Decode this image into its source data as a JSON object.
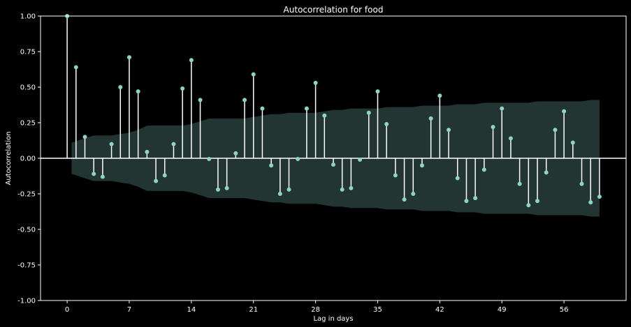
{
  "chart_data": {
    "type": "stem",
    "title": "Autocorrelation for food",
    "xlabel": "Lag in days",
    "ylabel": "Autocorrelation",
    "xlim": [
      -3,
      63
    ],
    "ylim": [
      -1.0,
      1.0
    ],
    "xticks": [
      0,
      7,
      14,
      21,
      28,
      35,
      42,
      49,
      56
    ],
    "yticks": [
      "-1.00",
      "-0.75",
      "-0.50",
      "-0.25",
      "0.00",
      "0.25",
      "0.50",
      "0.75",
      "1.00"
    ],
    "grid": false,
    "colors": {
      "background": "#000000",
      "marker": "#8dd3c7",
      "stem": "#ffffff",
      "confidence_band": "#8dd3c7",
      "text": "#ffffff"
    },
    "lags": [
      0,
      1,
      2,
      3,
      4,
      5,
      6,
      7,
      8,
      9,
      10,
      11,
      12,
      13,
      14,
      15,
      16,
      17,
      18,
      19,
      20,
      21,
      22,
      23,
      24,
      25,
      26,
      27,
      28,
      29,
      30,
      31,
      32,
      33,
      34,
      35,
      36,
      37,
      38,
      39,
      40,
      41,
      42,
      43,
      44,
      45,
      46,
      47,
      48,
      49,
      50,
      51,
      52,
      53,
      54,
      55,
      56,
      57,
      58,
      59,
      60
    ],
    "values": [
      1.0,
      0.64,
      0.15,
      -0.11,
      -0.13,
      0.1,
      0.5,
      0.71,
      0.47,
      0.045,
      -0.16,
      -0.12,
      0.1,
      0.49,
      0.69,
      0.41,
      -0.005,
      -0.22,
      -0.21,
      0.035,
      0.41,
      0.59,
      0.35,
      -0.05,
      -0.25,
      -0.22,
      -0.005,
      0.35,
      0.53,
      0.3,
      -0.045,
      -0.22,
      -0.21,
      -0.01,
      0.32,
      0.47,
      0.24,
      -0.12,
      -0.29,
      -0.25,
      -0.05,
      0.28,
      0.44,
      0.2,
      -0.14,
      -0.3,
      -0.28,
      -0.08,
      0.22,
      0.35,
      0.14,
      -0.18,
      -0.33,
      -0.3,
      -0.1,
      0.2,
      0.33,
      0.11,
      -0.18,
      -0.31,
      -0.27
    ],
    "confidence_band": [
      0.0,
      0.11,
      0.14,
      0.16,
      0.16,
      0.16,
      0.17,
      0.18,
      0.2,
      0.23,
      0.23,
      0.23,
      0.23,
      0.23,
      0.24,
      0.26,
      0.28,
      0.28,
      0.28,
      0.28,
      0.28,
      0.29,
      0.3,
      0.31,
      0.31,
      0.32,
      0.32,
      0.32,
      0.32,
      0.33,
      0.34,
      0.34,
      0.35,
      0.35,
      0.35,
      0.35,
      0.36,
      0.36,
      0.36,
      0.36,
      0.37,
      0.37,
      0.37,
      0.37,
      0.38,
      0.38,
      0.38,
      0.39,
      0.39,
      0.39,
      0.39,
      0.39,
      0.39,
      0.4,
      0.4,
      0.4,
      0.4,
      0.4,
      0.4,
      0.41,
      0.41
    ]
  }
}
